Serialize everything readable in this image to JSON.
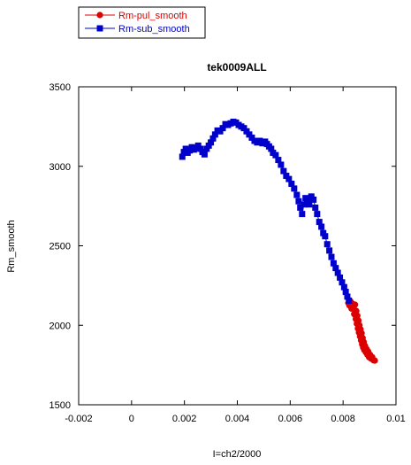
{
  "chart_data": {
    "type": "scatter",
    "title": "tek0009ALL",
    "xlabel": "I=ch2/2000",
    "ylabel": "Rm_smooth",
    "xlim": [
      -0.002,
      0.01
    ],
    "ylim": [
      1500,
      3500
    ],
    "x_ticks": [
      "-0.002",
      "0",
      "0.002",
      "0.004",
      "0.006",
      "0.008",
      "0.01"
    ],
    "y_ticks": [
      "1500",
      "2000",
      "2500",
      "3000",
      "3500"
    ],
    "grid": false,
    "legend_position": "top-left, outside plot",
    "series": [
      {
        "name": "Rm-pul_smooth",
        "color": "#dd0000",
        "marker": "circle",
        "line": true,
        "points": [
          [
            0.0082,
            2140
          ],
          [
            0.00824,
            2125
          ],
          [
            0.00828,
            2150
          ],
          [
            0.00832,
            2105
          ],
          [
            0.00836,
            2135
          ],
          [
            0.0084,
            2115
          ],
          [
            0.00842,
            2070
          ],
          [
            0.00845,
            2130
          ],
          [
            0.00848,
            2040
          ],
          [
            0.0085,
            2090
          ],
          [
            0.00852,
            2010
          ],
          [
            0.00854,
            2060
          ],
          [
            0.00856,
            1980
          ],
          [
            0.00858,
            2030
          ],
          [
            0.0086,
            1955
          ],
          [
            0.00862,
            2000
          ],
          [
            0.00864,
            1930
          ],
          [
            0.00866,
            1975
          ],
          [
            0.00868,
            1905
          ],
          [
            0.0087,
            1950
          ],
          [
            0.00872,
            1880
          ],
          [
            0.00874,
            1920
          ],
          [
            0.00876,
            1860
          ],
          [
            0.00878,
            1895
          ],
          [
            0.0088,
            1845
          ],
          [
            0.00883,
            1870
          ],
          [
            0.00886,
            1830
          ],
          [
            0.00889,
            1850
          ],
          [
            0.00892,
            1815
          ],
          [
            0.00895,
            1835
          ],
          [
            0.00898,
            1800
          ],
          [
            0.00902,
            1815
          ],
          [
            0.00906,
            1790
          ],
          [
            0.0091,
            1800
          ],
          [
            0.00915,
            1780
          ],
          [
            0.0092,
            1778
          ]
        ]
      },
      {
        "name": "Rm-sub_smooth",
        "color": "#0000cc",
        "marker": "square",
        "line": true,
        "points": [
          [
            0.00192,
            3060
          ],
          [
            0.00198,
            3090
          ],
          [
            0.00205,
            3110
          ],
          [
            0.00212,
            3085
          ],
          [
            0.0022,
            3100
          ],
          [
            0.00228,
            3120
          ],
          [
            0.00236,
            3105
          ],
          [
            0.00244,
            3115
          ],
          [
            0.00252,
            3130
          ],
          [
            0.0026,
            3110
          ],
          [
            0.00268,
            3090
          ],
          [
            0.00276,
            3075
          ],
          [
            0.00284,
            3110
          ],
          [
            0.00292,
            3130
          ],
          [
            0.003,
            3150
          ],
          [
            0.00308,
            3175
          ],
          [
            0.00316,
            3200
          ],
          [
            0.00325,
            3225
          ],
          [
            0.00335,
            3220
          ],
          [
            0.00345,
            3240
          ],
          [
            0.00355,
            3265
          ],
          [
            0.00365,
            3260
          ],
          [
            0.00375,
            3270
          ],
          [
            0.00385,
            3280
          ],
          [
            0.00395,
            3275
          ],
          [
            0.00405,
            3260
          ],
          [
            0.00415,
            3250
          ],
          [
            0.00425,
            3240
          ],
          [
            0.00435,
            3220
          ],
          [
            0.00445,
            3200
          ],
          [
            0.00455,
            3180
          ],
          [
            0.00465,
            3160
          ],
          [
            0.00475,
            3150
          ],
          [
            0.00485,
            3160
          ],
          [
            0.00495,
            3145
          ],
          [
            0.00505,
            3155
          ],
          [
            0.00512,
            3140
          ],
          [
            0.0052,
            3125
          ],
          [
            0.00528,
            3110
          ],
          [
            0.00535,
            3085
          ],
          [
            0.00545,
            3070
          ],
          [
            0.00555,
            3040
          ],
          [
            0.00565,
            3010
          ],
          [
            0.00575,
            2970
          ],
          [
            0.00585,
            2940
          ],
          [
            0.00595,
            2920
          ],
          [
            0.00605,
            2890
          ],
          [
            0.00615,
            2860
          ],
          [
            0.00625,
            2820
          ],
          [
            0.00632,
            2780
          ],
          [
            0.00638,
            2740
          ],
          [
            0.00645,
            2700
          ],
          [
            0.00652,
            2760
          ],
          [
            0.00658,
            2800
          ],
          [
            0.00665,
            2780
          ],
          [
            0.00672,
            2760
          ],
          [
            0.0068,
            2810
          ],
          [
            0.00688,
            2790
          ],
          [
            0.00695,
            2740
          ],
          [
            0.00702,
            2700
          ],
          [
            0.0071,
            2650
          ],
          [
            0.00718,
            2620
          ],
          [
            0.00725,
            2580
          ],
          [
            0.00732,
            2560
          ],
          [
            0.0074,
            2510
          ],
          [
            0.00748,
            2470
          ],
          [
            0.00756,
            2430
          ],
          [
            0.00764,
            2390
          ],
          [
            0.00772,
            2360
          ],
          [
            0.0078,
            2330
          ],
          [
            0.00788,
            2300
          ],
          [
            0.00796,
            2270
          ],
          [
            0.00804,
            2240
          ],
          [
            0.0081,
            2210
          ],
          [
            0.00816,
            2180
          ],
          [
            0.00822,
            2155
          ]
        ]
      }
    ]
  }
}
